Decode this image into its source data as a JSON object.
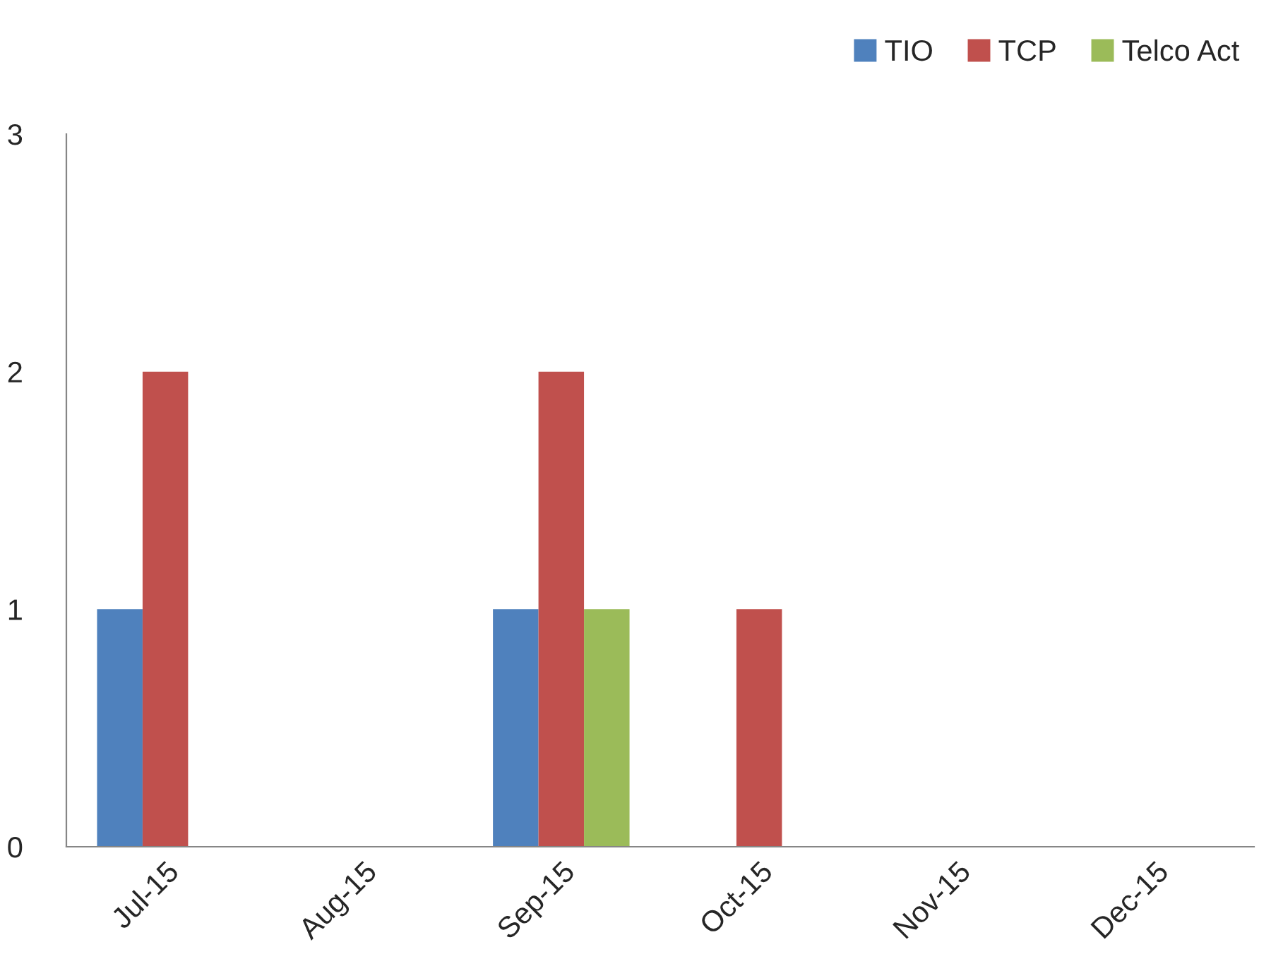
{
  "chart_data": {
    "type": "bar",
    "categories": [
      "Jul-15",
      "Aug-15",
      "Sep-15",
      "Oct-15",
      "Nov-15",
      "Dec-15"
    ],
    "series": [
      {
        "name": "TIO",
        "color": "#4f81bd",
        "values": [
          1,
          0,
          1,
          0,
          0,
          0
        ]
      },
      {
        "name": "TCP",
        "color": "#c0504d",
        "values": [
          2,
          0,
          2,
          1,
          0,
          0
        ]
      },
      {
        "name": "Telco Act",
        "color": "#9bbb59",
        "values": [
          0,
          0,
          1,
          0,
          0,
          0
        ]
      }
    ],
    "ylim": [
      0,
      3
    ],
    "yticks": [
      0,
      1,
      2,
      3
    ],
    "grid": false,
    "legend": "top right"
  }
}
